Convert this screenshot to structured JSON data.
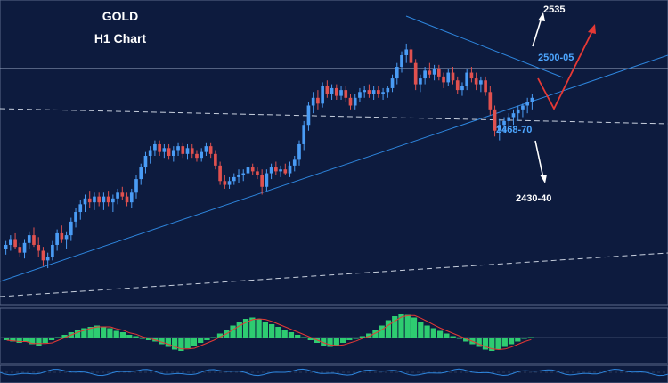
{
  "chart_data": {
    "type": "candlestick",
    "title_line1": "GOLD",
    "title_line2": "H1 Chart",
    "instrument": "GOLD",
    "timeframe": "H1",
    "ylim": [
      2395,
      2545
    ],
    "bars": [
      [
        2422,
        2426,
        2419,
        2424
      ],
      [
        2424,
        2429,
        2421,
        2427
      ],
      [
        2427,
        2430,
        2422,
        2423
      ],
      [
        2423,
        2425,
        2418,
        2420
      ],
      [
        2420,
        2427,
        2417,
        2425
      ],
      [
        2425,
        2431,
        2422,
        2429
      ],
      [
        2429,
        2433,
        2423,
        2424
      ],
      [
        2424,
        2428,
        2418,
        2421
      ],
      [
        2421,
        2423,
        2413,
        2416
      ],
      [
        2416,
        2420,
        2412,
        2418
      ],
      [
        2418,
        2426,
        2416,
        2424
      ],
      [
        2424,
        2432,
        2421,
        2430
      ],
      [
        2430,
        2434,
        2425,
        2427
      ],
      [
        2427,
        2431,
        2422,
        2429
      ],
      [
        2429,
        2438,
        2426,
        2436
      ],
      [
        2436,
        2443,
        2433,
        2441
      ],
      [
        2441,
        2447,
        2437,
        2445
      ],
      [
        2445,
        2450,
        2441,
        2448
      ],
      [
        2448,
        2452,
        2443,
        2446
      ],
      [
        2446,
        2451,
        2442,
        2449
      ],
      [
        2449,
        2451,
        2444,
        2446
      ],
      [
        2446,
        2451,
        2442,
        2449
      ],
      [
        2449,
        2452,
        2444,
        2446
      ],
      [
        2446,
        2450,
        2441,
        2448
      ],
      [
        2448,
        2453,
        2445,
        2451
      ],
      [
        2451,
        2454,
        2447,
        2449
      ],
      [
        2449,
        2451,
        2444,
        2446
      ],
      [
        2446,
        2453,
        2443,
        2451
      ],
      [
        2451,
        2460,
        2448,
        2458
      ],
      [
        2458,
        2466,
        2455,
        2464
      ],
      [
        2464,
        2472,
        2461,
        2470
      ],
      [
        2470,
        2475,
        2466,
        2473
      ],
      [
        2473,
        2478,
        2470,
        2476
      ],
      [
        2476,
        2478,
        2470,
        2472
      ],
      [
        2472,
        2476,
        2469,
        2474
      ],
      [
        2474,
        2476,
        2468,
        2470
      ],
      [
        2470,
        2475,
        2467,
        2473
      ],
      [
        2473,
        2477,
        2470,
        2475
      ],
      [
        2475,
        2477,
        2469,
        2471
      ],
      [
        2471,
        2476,
        2468,
        2474
      ],
      [
        2474,
        2476,
        2469,
        2471
      ],
      [
        2471,
        2473,
        2467,
        2469
      ],
      [
        2469,
        2474,
        2467,
        2472
      ],
      [
        2472,
        2477,
        2470,
        2475
      ],
      [
        2475,
        2477,
        2469,
        2471
      ],
      [
        2471,
        2473,
        2463,
        2465
      ],
      [
        2465,
        2467,
        2455,
        2457
      ],
      [
        2457,
        2460,
        2453,
        2455
      ],
      [
        2455,
        2459,
        2453,
        2457
      ],
      [
        2457,
        2461,
        2455,
        2459
      ],
      [
        2459,
        2463,
        2456,
        2460
      ],
      [
        2460,
        2463,
        2457,
        2461
      ],
      [
        2461,
        2466,
        2458,
        2464
      ],
      [
        2464,
        2466,
        2460,
        2462
      ],
      [
        2462,
        2464,
        2458,
        2460
      ],
      [
        2460,
        2463,
        2450,
        2454
      ],
      [
        2454,
        2463,
        2452,
        2461
      ],
      [
        2461,
        2466,
        2458,
        2464
      ],
      [
        2464,
        2467,
        2460,
        2462
      ],
      [
        2462,
        2465,
        2459,
        2463
      ],
      [
        2463,
        2466,
        2460,
        2461
      ],
      [
        2461,
        2467,
        2459,
        2465
      ],
      [
        2465,
        2470,
        2462,
        2468
      ],
      [
        2468,
        2478,
        2465,
        2476
      ],
      [
        2476,
        2488,
        2473,
        2486
      ],
      [
        2486,
        2498,
        2483,
        2496
      ],
      [
        2496,
        2503,
        2492,
        2500
      ],
      [
        2500,
        2504,
        2494,
        2497
      ],
      [
        2497,
        2508,
        2495,
        2506
      ],
      [
        2506,
        2509,
        2500,
        2502
      ],
      [
        2502,
        2507,
        2499,
        2505
      ],
      [
        2505,
        2507,
        2499,
        2501
      ],
      [
        2501,
        2506,
        2499,
        2504
      ],
      [
        2504,
        2506,
        2498,
        2500
      ],
      [
        2500,
        2502,
        2494,
        2496
      ],
      [
        2496,
        2502,
        2494,
        2500
      ],
      [
        2500,
        2505,
        2498,
        2503
      ],
      [
        2503,
        2506,
        2500,
        2504
      ],
      [
        2504,
        2507,
        2500,
        2502
      ],
      [
        2502,
        2506,
        2499,
        2504
      ],
      [
        2504,
        2506,
        2500,
        2502
      ],
      [
        2502,
        2505,
        2499,
        2503
      ],
      [
        2503,
        2506,
        2500,
        2505
      ],
      [
        2505,
        2512,
        2503,
        2510
      ],
      [
        2510,
        2518,
        2507,
        2516
      ],
      [
        2516,
        2524,
        2513,
        2522
      ],
      [
        2522,
        2528,
        2518,
        2525
      ],
      [
        2525,
        2527,
        2516,
        2518
      ],
      [
        2518,
        2520,
        2504,
        2507
      ],
      [
        2507,
        2512,
        2503,
        2510
      ],
      [
        2510,
        2516,
        2507,
        2514
      ],
      [
        2514,
        2518,
        2510,
        2512
      ],
      [
        2512,
        2517,
        2509,
        2515
      ],
      [
        2515,
        2517,
        2509,
        2511
      ],
      [
        2511,
        2513,
        2505,
        2508
      ],
      [
        2508,
        2515,
        2506,
        2513
      ],
      [
        2513,
        2516,
        2507,
        2509
      ],
      [
        2509,
        2511,
        2502,
        2504
      ],
      [
        2504,
        2508,
        2501,
        2506
      ],
      [
        2506,
        2515,
        2504,
        2513
      ],
      [
        2513,
        2516,
        2508,
        2510
      ],
      [
        2510,
        2513,
        2504,
        2507
      ],
      [
        2507,
        2511,
        2503,
        2509
      ],
      [
        2509,
        2511,
        2501,
        2503
      ],
      [
        2503,
        2506,
        2491,
        2494
      ],
      [
        2494,
        2496,
        2480,
        2483
      ],
      [
        2483,
        2489,
        2478,
        2486
      ],
      [
        2486,
        2490,
        2482,
        2488
      ],
      [
        2488,
        2492,
        2484,
        2490
      ],
      [
        2490,
        2494,
        2486,
        2492
      ],
      [
        2492,
        2496,
        2488,
        2494
      ],
      [
        2494,
        2497,
        2490,
        2496
      ],
      [
        2496,
        2500,
        2492,
        2498
      ],
      [
        2498,
        2502,
        2494,
        2500
      ]
    ],
    "resistance_level": 2506,
    "annotations": [
      "2535",
      "2500-05",
      "2468-70",
      "2430-40"
    ],
    "indicator": {
      "type": "histogram",
      "values": [
        -2,
        -3,
        -4,
        -3,
        -5,
        -6,
        -4,
        -2,
        0,
        2,
        4,
        6,
        7,
        8,
        9,
        8,
        7,
        5,
        4,
        2,
        1,
        -1,
        -2,
        -3,
        -5,
        -7,
        -9,
        -10,
        -8,
        -6,
        -4,
        -2,
        0,
        3,
        6,
        9,
        12,
        14,
        15,
        14,
        12,
        10,
        8,
        6,
        4,
        2,
        0,
        -2,
        -4,
        -6,
        -7,
        -6,
        -4,
        -2,
        -1,
        1,
        3,
        6,
        9,
        13,
        16,
        18,
        17,
        15,
        12,
        9,
        7,
        5,
        3,
        1,
        -1,
        -3,
        -5,
        -7,
        -9,
        -10,
        -9,
        -7,
        -5,
        -3,
        -1,
        0
      ]
    }
  }
}
